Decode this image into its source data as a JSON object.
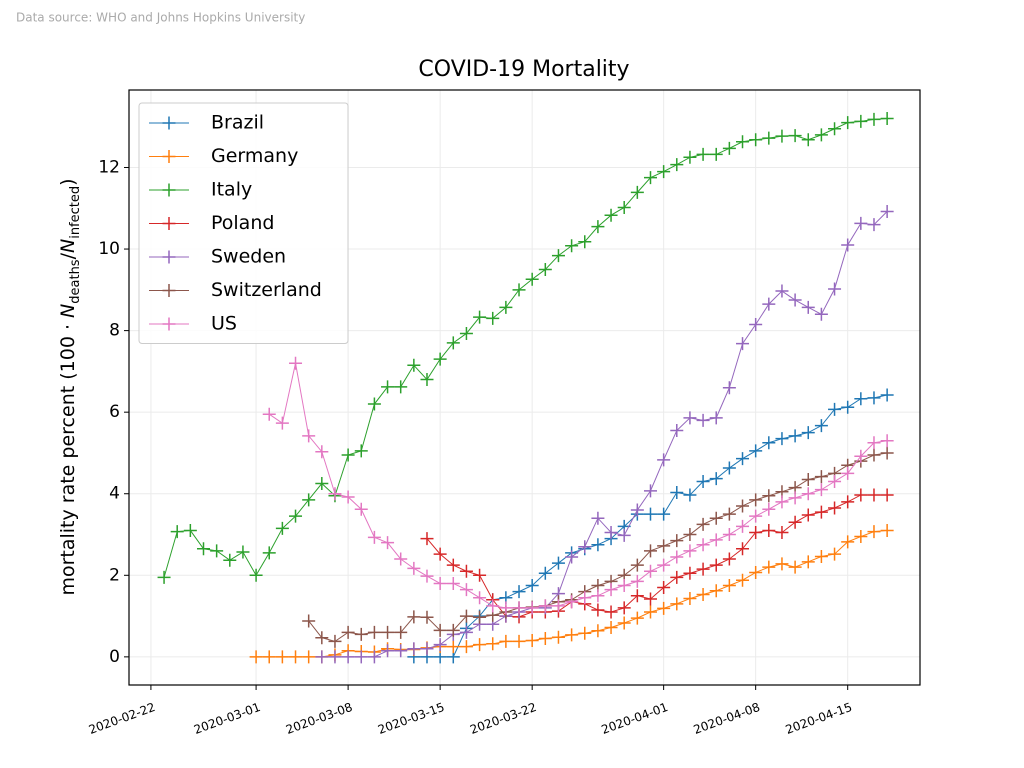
{
  "source": "Data source: WHO and Johns Hopkins University",
  "chart_data": {
    "type": "line",
    "title": "COVID-19 Mortality",
    "ylabel": [
      "mortality rate percent (100 · ",
      "N",
      "deaths",
      "/",
      "N",
      "infected",
      ")"
    ],
    "x": [
      "2020-02-23",
      "2020-02-24",
      "2020-02-25",
      "2020-02-26",
      "2020-02-27",
      "2020-02-28",
      "2020-02-29",
      "2020-03-01",
      "2020-03-02",
      "2020-03-03",
      "2020-03-04",
      "2020-03-05",
      "2020-03-06",
      "2020-03-07",
      "2020-03-08",
      "2020-03-09",
      "2020-03-10",
      "2020-03-11",
      "2020-03-12",
      "2020-03-13",
      "2020-03-14",
      "2020-03-15",
      "2020-03-16",
      "2020-03-17",
      "2020-03-18",
      "2020-03-19",
      "2020-03-20",
      "2020-03-21",
      "2020-03-22",
      "2020-03-23",
      "2020-03-24",
      "2020-03-25",
      "2020-03-26",
      "2020-03-27",
      "2020-03-28",
      "2020-03-29",
      "2020-03-30",
      "2020-03-31",
      "2020-04-01",
      "2020-04-02",
      "2020-04-03",
      "2020-04-04",
      "2020-04-05",
      "2020-04-06",
      "2020-04-07",
      "2020-04-08",
      "2020-04-09",
      "2020-04-10",
      "2020-04-11",
      "2020-04-12",
      "2020-04-13",
      "2020-04-14",
      "2020-04-15",
      "2020-04-16",
      "2020-04-17",
      "2020-04-18"
    ],
    "series": [
      {
        "name": "Brazil",
        "color": "#1f77b4",
        "values": [
          null,
          null,
          null,
          null,
          null,
          null,
          null,
          null,
          null,
          null,
          null,
          null,
          null,
          null,
          null,
          null,
          null,
          null,
          null,
          0,
          0,
          0,
          0,
          0.7,
          1.0,
          1.4,
          1.45,
          1.6,
          1.75,
          2.05,
          2.3,
          2.55,
          2.65,
          2.75,
          2.9,
          3.2,
          3.5,
          3.5,
          3.5,
          4.03,
          3.97,
          4.3,
          4.37,
          4.63,
          4.86,
          5.05,
          5.25,
          5.35,
          5.42,
          5.5,
          5.67,
          6.07,
          6.12,
          6.33,
          6.35,
          6.42
        ]
      },
      {
        "name": "Germany",
        "color": "#ff7f0e",
        "values": [
          null,
          null,
          null,
          null,
          null,
          null,
          null,
          0,
          0,
          0,
          0,
          0,
          0,
          0.05,
          0.15,
          0.13,
          0.12,
          0.2,
          0.18,
          0.18,
          0.22,
          0.25,
          0.25,
          0.25,
          0.3,
          0.32,
          0.38,
          0.38,
          0.4,
          0.45,
          0.48,
          0.54,
          0.58,
          0.64,
          0.72,
          0.83,
          0.95,
          1.1,
          1.19,
          1.3,
          1.43,
          1.53,
          1.62,
          1.75,
          1.88,
          2.07,
          2.2,
          2.28,
          2.2,
          2.33,
          2.46,
          2.52,
          2.82,
          2.95,
          3.07,
          3.1
        ]
      },
      {
        "name": "Italy",
        "color": "#2ca02c",
        "values": [
          1.95,
          3.07,
          3.1,
          2.65,
          2.6,
          2.37,
          2.57,
          2.0,
          2.55,
          3.15,
          3.45,
          3.85,
          4.25,
          3.95,
          4.95,
          5.05,
          6.2,
          6.62,
          6.62,
          7.15,
          6.8,
          7.3,
          7.7,
          7.93,
          8.33,
          8.3,
          8.57,
          9.0,
          9.26,
          9.5,
          9.84,
          10.08,
          10.18,
          10.55,
          10.83,
          11.02,
          11.39,
          11.75,
          11.9,
          12.07,
          12.25,
          12.32,
          12.32,
          12.47,
          12.63,
          12.68,
          12.72,
          12.77,
          12.78,
          12.68,
          12.8,
          12.95,
          13.1,
          13.13,
          13.18,
          13.2
        ]
      },
      {
        "name": "Poland",
        "color": "#d62728",
        "values": [
          null,
          null,
          null,
          null,
          null,
          null,
          null,
          null,
          null,
          null,
          null,
          null,
          null,
          null,
          null,
          null,
          null,
          null,
          null,
          null,
          2.9,
          2.52,
          2.25,
          2.1,
          2.0,
          1.4,
          1.0,
          0.98,
          1.1,
          1.1,
          1.12,
          1.35,
          1.3,
          1.15,
          1.1,
          1.2,
          1.5,
          1.42,
          1.7,
          1.95,
          2.05,
          2.15,
          2.25,
          2.4,
          2.65,
          3.05,
          3.1,
          3.05,
          3.3,
          3.48,
          3.55,
          3.65,
          3.8,
          3.97,
          3.97,
          3.97
        ]
      },
      {
        "name": "Sweden",
        "color": "#9467bd",
        "values": [
          null,
          null,
          null,
          null,
          null,
          null,
          null,
          null,
          null,
          null,
          null,
          null,
          0,
          0,
          0,
          0,
          0,
          0.15,
          0.15,
          0.2,
          0.2,
          0.3,
          0.55,
          0.6,
          0.8,
          0.8,
          1.0,
          1.1,
          1.2,
          1.2,
          1.55,
          2.45,
          2.7,
          3.4,
          3.05,
          2.98,
          3.6,
          4.07,
          4.83,
          5.55,
          5.86,
          5.8,
          5.86,
          6.6,
          7.68,
          8.15,
          8.65,
          8.97,
          8.75,
          8.57,
          8.4,
          9.02,
          10.1,
          10.63,
          10.6,
          10.92
        ]
      },
      {
        "name": "Switzerland",
        "color": "#8c564b",
        "values": [
          null,
          null,
          null,
          null,
          null,
          null,
          null,
          null,
          null,
          null,
          null,
          0.88,
          0.47,
          0.38,
          0.6,
          0.55,
          0.6,
          0.6,
          0.6,
          0.98,
          0.97,
          0.65,
          0.65,
          1.0,
          0.97,
          1.02,
          1.1,
          1.2,
          1.22,
          1.25,
          1.35,
          1.4,
          1.6,
          1.75,
          1.85,
          2.0,
          2.25,
          2.6,
          2.72,
          2.85,
          3.0,
          3.25,
          3.4,
          3.5,
          3.7,
          3.85,
          3.95,
          4.05,
          4.15,
          4.35,
          4.42,
          4.5,
          4.7,
          4.8,
          4.95,
          5.0
        ]
      },
      {
        "name": "US",
        "color": "#e377c2",
        "values": [
          null,
          null,
          null,
          null,
          null,
          null,
          null,
          null,
          5.95,
          5.73,
          7.2,
          5.42,
          5.03,
          4.0,
          3.92,
          3.62,
          2.93,
          2.8,
          2.4,
          2.17,
          1.98,
          1.8,
          1.8,
          1.65,
          1.45,
          1.25,
          1.2,
          1.2,
          1.2,
          1.25,
          1.25,
          1.35,
          1.45,
          1.5,
          1.65,
          1.75,
          1.85,
          2.1,
          2.25,
          2.45,
          2.6,
          2.75,
          2.87,
          3.0,
          3.2,
          3.45,
          3.62,
          3.8,
          3.9,
          4.0,
          4.1,
          4.3,
          4.5,
          4.92,
          5.25,
          5.3
        ]
      }
    ],
    "xlim": [
      "2020-02-20T08:00",
      "2020-04-20T12:00"
    ],
    "xticks": [
      "2020-02-22",
      "2020-03-01",
      "2020-03-08",
      "2020-03-15",
      "2020-03-22",
      "2020-04-01",
      "2020-04-08",
      "2020-04-15"
    ],
    "ylim": [
      -0.69,
      13.9
    ],
    "yticks": [
      0,
      2,
      4,
      6,
      8,
      10,
      12
    ],
    "grid": true,
    "legend": "upper left"
  }
}
